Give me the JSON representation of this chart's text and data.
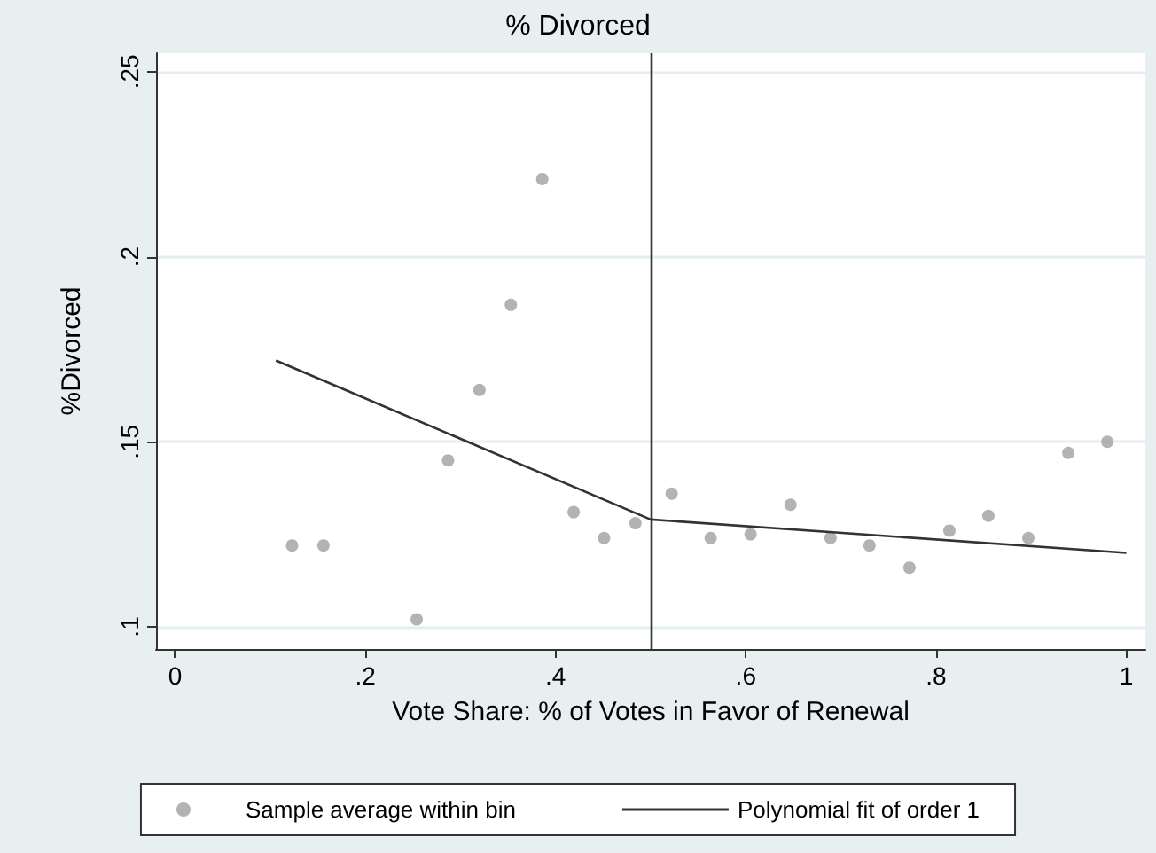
{
  "chart_data": {
    "type": "scatter",
    "title": "% Divorced",
    "xlabel": "Vote Share: % of Votes in Favor of Renewal",
    "ylabel": "%Divorced",
    "xlim": [
      -0.02,
      1.02
    ],
    "ylim": [
      0.094,
      0.255
    ],
    "xticks": [
      0,
      {
        "value": 0.2,
        "label": ".2"
      },
      {
        "value": 0.4,
        "label": ".4"
      },
      {
        "value": 0.6,
        "label": ".6"
      },
      {
        "value": 0.8,
        "label": ".8"
      },
      1
    ],
    "yticks": [
      {
        "value": 0.1,
        "label": ".1"
      },
      {
        "value": 0.15,
        "label": ".15"
      },
      {
        "value": 0.2,
        "label": ".2"
      },
      {
        "value": 0.25,
        "label": ".25"
      }
    ],
    "grid": "y",
    "legend": "bottom",
    "marker": "circle",
    "ref_lines": [
      {
        "axis": "x",
        "value": 0.5,
        "color": "#333333"
      }
    ],
    "series": [
      {
        "name": "Sample average within bin",
        "type": "scatter",
        "color": "#a0a0a0",
        "x": [
          0.123,
          0.156,
          0.254,
          0.287,
          0.32,
          0.353,
          0.386,
          0.419,
          0.451,
          0.484,
          0.522,
          0.563,
          0.605,
          0.647,
          0.689,
          0.73,
          0.772,
          0.814,
          0.855,
          0.897,
          0.939,
          0.98
        ],
        "values": [
          0.122,
          0.122,
          0.102,
          0.145,
          0.164,
          0.187,
          0.221,
          0.131,
          0.124,
          0.128,
          0.136,
          0.124,
          0.125,
          0.133,
          0.124,
          0.122,
          0.116,
          0.126,
          0.13,
          0.124,
          0.147,
          0.15
        ]
      },
      {
        "name": "Polynomial fit of order 1",
        "type": "line",
        "color": "#333333",
        "marker": "none",
        "x": [
          0.106,
          0.5,
          1
        ],
        "values": [
          0.172,
          0.129,
          0.12
        ]
      }
    ]
  }
}
